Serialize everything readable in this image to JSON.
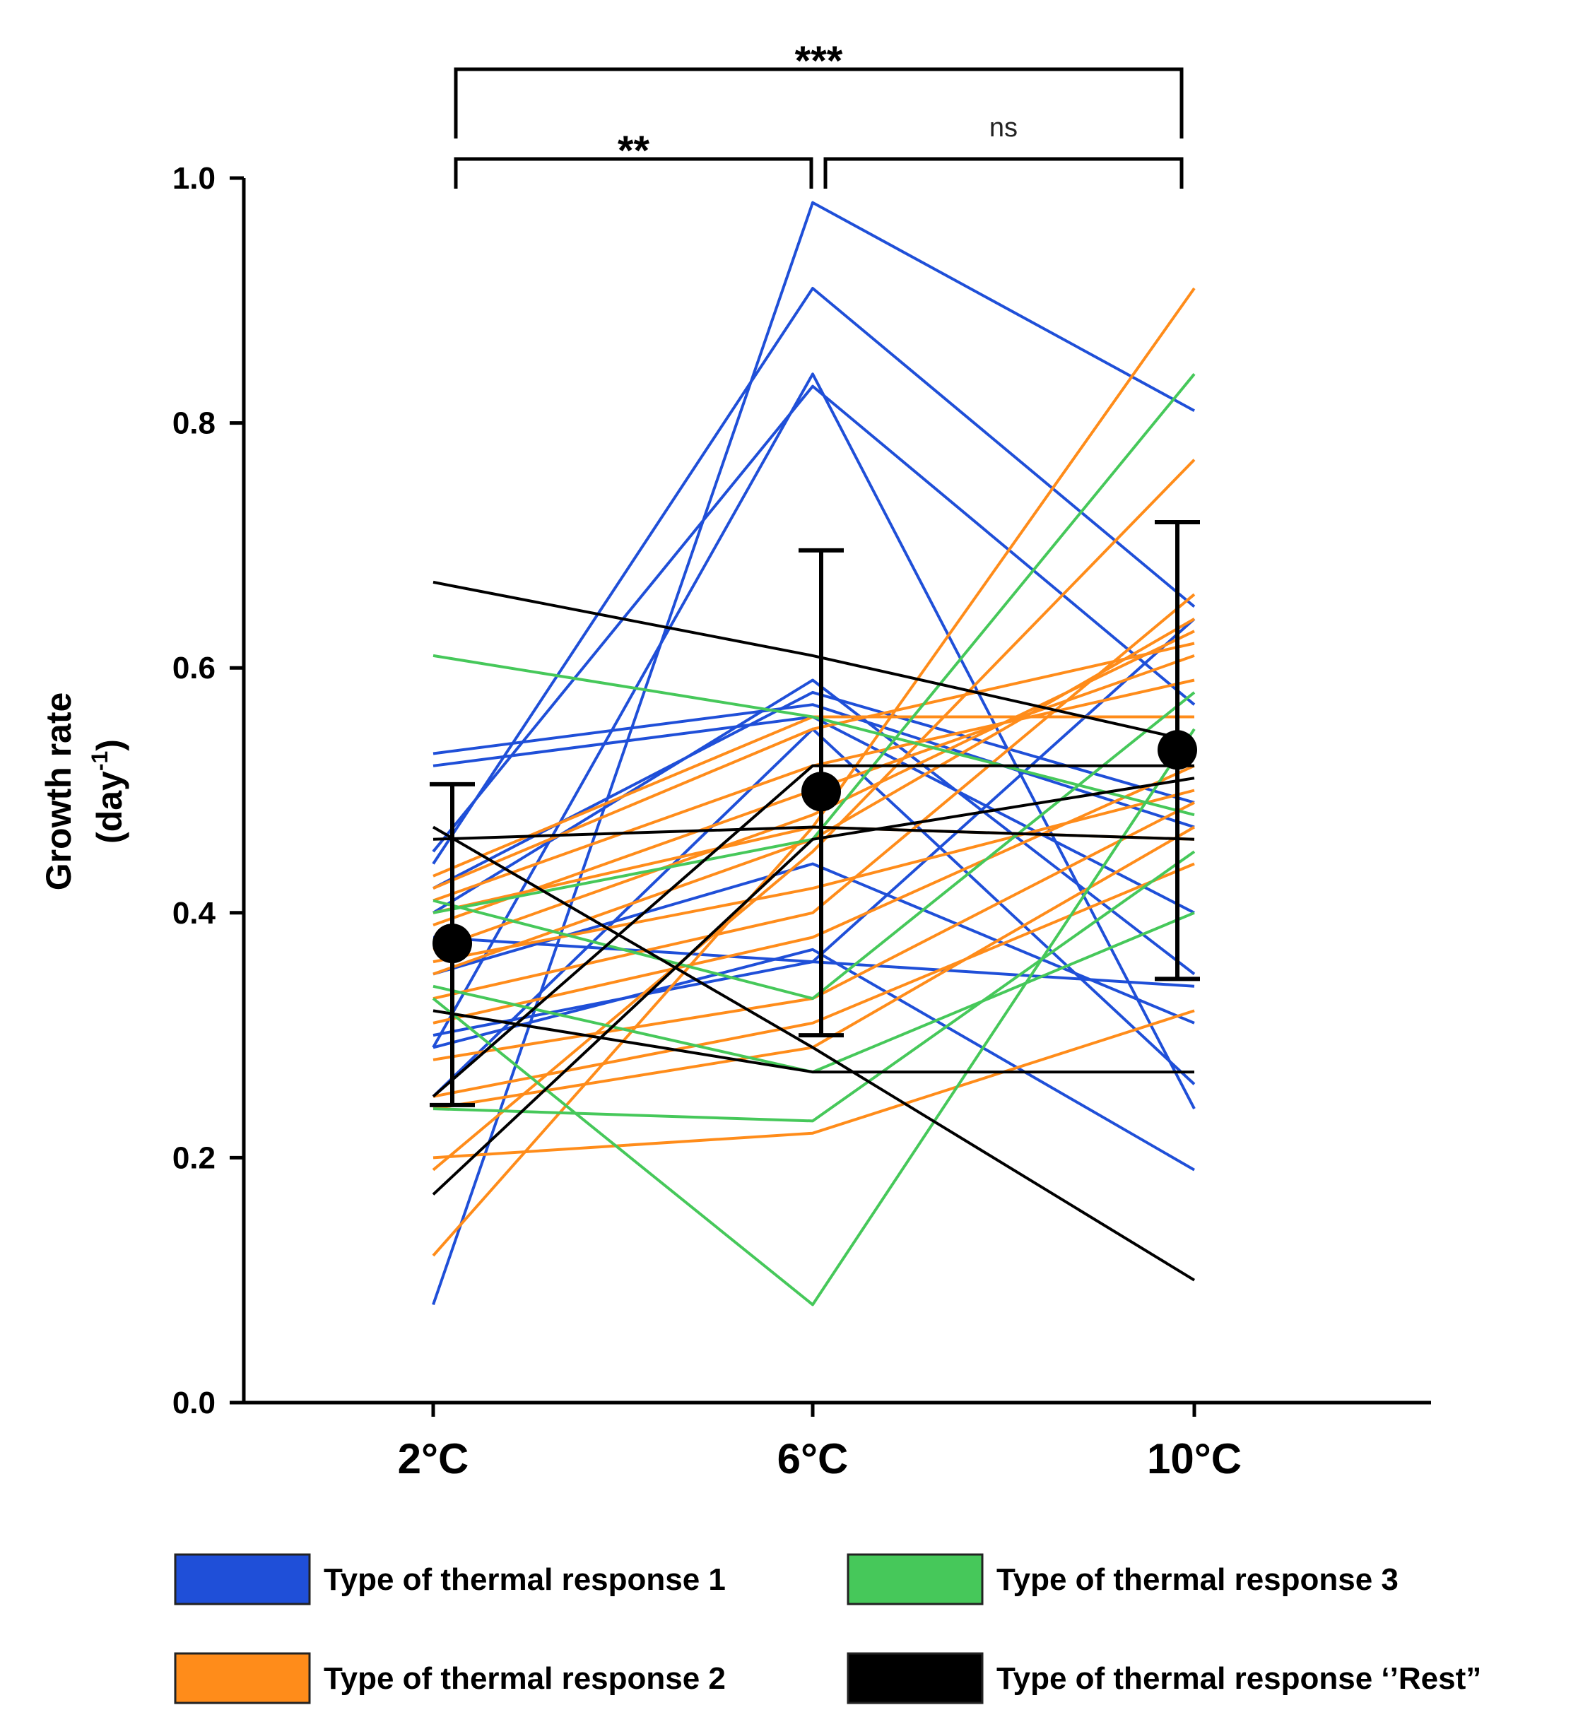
{
  "chart_data": {
    "type": "line",
    "categories": [
      "2°C",
      "6°C",
      "10°C"
    ],
    "ylabel": "Growth rate",
    "ylabel_line2": "(day",
    "ylabel_sup": "-1",
    "ylabel_close": ")",
    "ylim": [
      0,
      1.0
    ],
    "yticks": [
      "0.0",
      "0.2",
      "0.4",
      "0.6",
      "0.8",
      "1.0"
    ],
    "grid": false,
    "legend_placement": "bottom",
    "colors": {
      "type1": "#1f4fd8",
      "type2": "#ff8c1a",
      "type3": "#46c85a",
      "rest": "#000000"
    },
    "legend": [
      {
        "key": "type1",
        "label": "Type of thermal response 1"
      },
      {
        "key": "type3",
        "label": "Type of thermal response 3"
      },
      {
        "key": "type2",
        "label": "Type of thermal response 2"
      },
      {
        "key": "rest",
        "label": "Type of thermal response ‘’Rest”"
      }
    ],
    "series": [
      {
        "group": "type1",
        "values": [
          0.08,
          0.98,
          0.81
        ]
      },
      {
        "group": "type1",
        "values": [
          0.44,
          0.91,
          0.65
        ]
      },
      {
        "group": "type1",
        "values": [
          0.29,
          0.84,
          0.24
        ]
      },
      {
        "group": "type1",
        "values": [
          0.45,
          0.83,
          0.57
        ]
      },
      {
        "group": "type1",
        "values": [
          0.53,
          0.57,
          0.47
        ]
      },
      {
        "group": "type1",
        "values": [
          0.52,
          0.56,
          0.4
        ]
      },
      {
        "group": "type1",
        "values": [
          0.4,
          0.59,
          0.35
        ]
      },
      {
        "group": "type1",
        "values": [
          0.25,
          0.55,
          0.26
        ]
      },
      {
        "group": "type1",
        "values": [
          0.35,
          0.44,
          0.31
        ]
      },
      {
        "group": "type1",
        "values": [
          0.29,
          0.37,
          0.19
        ]
      },
      {
        "group": "type1",
        "values": [
          0.3,
          0.36,
          0.34
        ]
      },
      {
        "group": "type1",
        "values": [
          0.42,
          0.58,
          0.49
        ]
      },
      {
        "group": "type1",
        "values": [
          0.38,
          0.36,
          0.64
        ]
      },
      {
        "group": "type2",
        "values": [
          0.12,
          0.47,
          0.91
        ]
      },
      {
        "group": "type2",
        "values": [
          0.19,
          0.45,
          0.77
        ]
      },
      {
        "group": "type2",
        "values": [
          0.2,
          0.22,
          0.32
        ]
      },
      {
        "group": "type2",
        "values": [
          0.25,
          0.31,
          0.44
        ]
      },
      {
        "group": "type2",
        "values": [
          0.33,
          0.4,
          0.66
        ]
      },
      {
        "group": "type2",
        "values": [
          0.35,
          0.46,
          0.64
        ]
      },
      {
        "group": "type2",
        "values": [
          0.37,
          0.48,
          0.63
        ]
      },
      {
        "group": "type2",
        "values": [
          0.39,
          0.5,
          0.61
        ]
      },
      {
        "group": "type2",
        "values": [
          0.41,
          0.52,
          0.59
        ]
      },
      {
        "group": "type2",
        "values": [
          0.42,
          0.55,
          0.62
        ]
      },
      {
        "group": "type2",
        "values": [
          0.43,
          0.56,
          0.56
        ]
      },
      {
        "group": "type2",
        "values": [
          0.31,
          0.38,
          0.52
        ]
      },
      {
        "group": "type2",
        "values": [
          0.24,
          0.29,
          0.47
        ]
      },
      {
        "group": "type2",
        "values": [
          0.28,
          0.33,
          0.49
        ]
      },
      {
        "group": "type2",
        "values": [
          0.36,
          0.42,
          0.5
        ]
      },
      {
        "group": "type2",
        "values": [
          0.4,
          0.47,
          0.46
        ]
      },
      {
        "group": "type3",
        "values": [
          0.61,
          0.56,
          0.48
        ]
      },
      {
        "group": "type3",
        "values": [
          0.4,
          0.46,
          0.84
        ]
      },
      {
        "group": "type3",
        "values": [
          0.41,
          0.33,
          0.58
        ]
      },
      {
        "group": "type3",
        "values": [
          0.33,
          0.08,
          0.55
        ]
      },
      {
        "group": "type3",
        "values": [
          0.24,
          0.23,
          0.45
        ]
      },
      {
        "group": "type3",
        "values": [
          0.34,
          0.27,
          0.4
        ]
      },
      {
        "group": "rest",
        "values": [
          0.67,
          0.61,
          0.54
        ]
      },
      {
        "group": "rest",
        "values": [
          0.46,
          0.47,
          0.46
        ]
      },
      {
        "group": "rest",
        "values": [
          0.47,
          0.29,
          0.1
        ]
      },
      {
        "group": "rest",
        "values": [
          0.32,
          0.27,
          0.27
        ]
      },
      {
        "group": "rest",
        "values": [
          0.17,
          0.46,
          0.51
        ]
      },
      {
        "group": "rest",
        "values": [
          0.25,
          0.52,
          0.52
        ]
      }
    ],
    "means": [
      {
        "category": "2°C",
        "mean": 0.375,
        "low": 0.243,
        "high": 0.505
      },
      {
        "category": "6°C",
        "mean": 0.499,
        "low": 0.3,
        "high": 0.696
      },
      {
        "category": "10°C",
        "mean": 0.533,
        "low": 0.346,
        "high": 0.719
      }
    ],
    "annotations": [
      {
        "from": "2°C",
        "to": "10°C",
        "label": "***"
      },
      {
        "from": "2°C",
        "to": "6°C",
        "label": "**"
      },
      {
        "from": "6°C",
        "to": "10°C",
        "label": "ns"
      }
    ]
  }
}
